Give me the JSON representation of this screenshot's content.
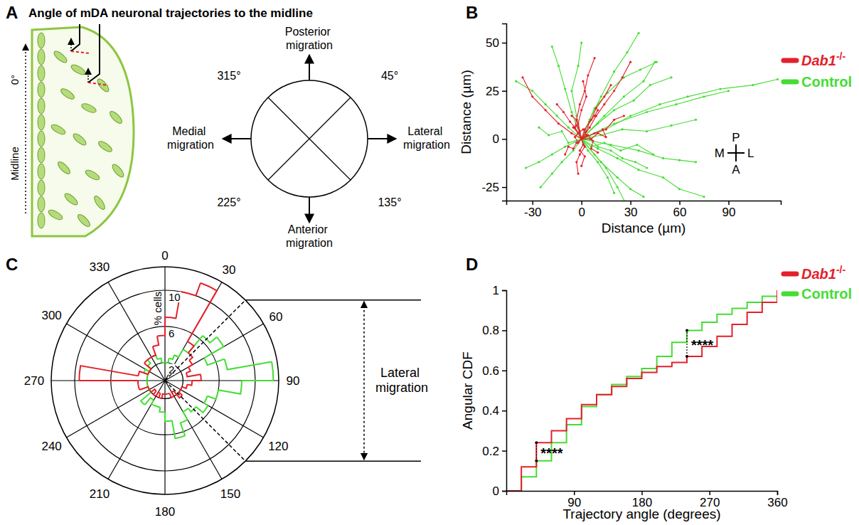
{
  "diagram": {
    "panel": "A",
    "title": "Angle of mDA neuronal trajectories to the midline",
    "schematic": {
      "axis_label": "Midline",
      "angle_label": "0°"
    },
    "compass": {
      "up": "Posterior migration",
      "left": "Medial migration",
      "right": "Lateral migration",
      "down": "Anterior migration",
      "upper_left": "315°",
      "upper_right": "45°",
      "lower_left": "225°",
      "lower_right": "135°"
    }
  },
  "chart_data": [
    {
      "panel": "B",
      "type": "line",
      "x_label": "Distance (µm)",
      "y_label": "Distance (µm)",
      "xlim": [
        -46,
        122
      ],
      "xticks": [
        -30,
        0,
        30,
        60,
        90
      ],
      "ylim": [
        -32,
        60
      ],
      "yticks": [
        -25,
        0,
        25,
        50
      ],
      "legend": "right",
      "annotations": {
        "up": "P",
        "down": "A",
        "left": "M",
        "right": "L"
      },
      "series": [
        {
          "name": "Dab1-/-",
          "color": "#e4202a",
          "marker": "dot",
          "tracks": [
            {
              "x": [
                0,
                -2,
                -4,
                -3,
                -6
              ],
              "y": [
                0,
                3,
                6,
                10,
                12
              ]
            },
            {
              "x": [
                0,
                3,
                5,
                8,
                10
              ],
              "y": [
                0,
                4,
                9,
                12,
                15
              ]
            },
            {
              "x": [
                0,
                -3,
                -5,
                -8,
                -10
              ],
              "y": [
                0,
                -2,
                -5,
                -4,
                -8
              ]
            },
            {
              "x": [
                0,
                2,
                6,
                9,
                14,
                18
              ],
              "y": [
                0,
                5,
                10,
                16,
                22,
                28
              ]
            },
            {
              "x": [
                0,
                1,
                -1,
                2,
                0
              ],
              "y": [
                0,
                -3,
                -6,
                -9,
                -14
              ]
            },
            {
              "x": [
                0,
                5,
                9,
                14,
                20,
                25,
                30
              ],
              "y": [
                0,
                6,
                12,
                18,
                25,
                32,
                40
              ]
            },
            {
              "x": [
                0,
                -6,
                -14,
                -22,
                -30,
                -36
              ],
              "y": [
                0,
                3,
                8,
                15,
                22,
                32
              ]
            },
            {
              "x": [
                0,
                4,
                7,
                6,
                10
              ],
              "y": [
                0,
                2,
                -1,
                -5,
                -7
              ]
            },
            {
              "x": [
                0,
                -2,
                0,
                3,
                1
              ],
              "y": [
                0,
                8,
                15,
                22,
                30
              ]
            },
            {
              "x": [
                0,
                6,
                10,
                15,
                13
              ],
              "y": [
                0,
                0,
                3,
                1,
                5
              ]
            },
            {
              "x": [
                0,
                -4,
                -7,
                -11,
                -15
              ],
              "y": [
                0,
                6,
                9,
                14,
                18
              ]
            },
            {
              "x": [
                0,
                2,
                -1,
                -3,
                -2
              ],
              "y": [
                0,
                -4,
                -8,
                -12,
                -18
              ]
            },
            {
              "x": [
                0,
                8,
                15,
                20,
                26
              ],
              "y": [
                0,
                3,
                5,
                10,
                12
              ]
            },
            {
              "x": [
                0,
                -3,
                -1,
                2,
                4,
                8
              ],
              "y": [
                0,
                10,
                18,
                25,
                33,
                42
              ]
            },
            {
              "x": [
                0,
                3,
                1,
                -2,
                -5
              ],
              "y": [
                0,
                2,
                5,
                3,
                6
              ]
            },
            {
              "x": [
                0,
                -2,
                -4,
                -1,
                -3
              ],
              "y": [
                0,
                -2,
                1,
                4,
                7
              ]
            }
          ]
        },
        {
          "name": "Control",
          "color": "#44dd33",
          "marker": "dot",
          "tracks": [
            {
              "x": [
                0,
                15,
                30,
                48,
                65,
                85,
                105,
                120
              ],
              "y": [
                0,
                5,
                12,
                18,
                22,
                26,
                28,
                31
              ]
            },
            {
              "x": [
                0,
                10,
                22,
                35,
                50,
                60,
                75
              ],
              "y": [
                0,
                -5,
                -10,
                -16,
                -20,
                -26,
                -30
              ]
            },
            {
              "x": [
                0,
                5,
                12,
                20,
                28,
                35
              ],
              "y": [
                0,
                10,
                22,
                35,
                45,
                55
              ]
            },
            {
              "x": [
                0,
                -8,
                -15,
                -22,
                -30,
                -40
              ],
              "y": [
                0,
                6,
                12,
                18,
                25,
                30
              ]
            },
            {
              "x": [
                0,
                12,
                25,
                40,
                55,
                70
              ],
              "y": [
                0,
                2,
                5,
                4,
                7,
                10
              ]
            },
            {
              "x": [
                0,
                8,
                15,
                22,
                28
              ],
              "y": [
                0,
                -8,
                -15,
                -25,
                -35
              ]
            },
            {
              "x": [
                0,
                -5,
                -12,
                -18,
                -25
              ],
              "y": [
                0,
                -6,
                -12,
                -18,
                -25
              ]
            },
            {
              "x": [
                0,
                10,
                20,
                32,
                42,
                55
              ],
              "y": [
                0,
                8,
                15,
                20,
                28,
                32
              ]
            },
            {
              "x": [
                0,
                18,
                35,
                50,
                60,
                70
              ],
              "y": [
                0,
                -3,
                -6,
                -10,
                -11,
                -12
              ]
            },
            {
              "x": [
                0,
                -3,
                -6,
                -2,
                0
              ],
              "y": [
                0,
                12,
                25,
                38,
                50
              ]
            },
            {
              "x": [
                0,
                14,
                26,
                38,
                45
              ],
              "y": [
                0,
                12,
                22,
                30,
                40
              ]
            },
            {
              "x": [
                0,
                6,
                14,
                24,
                34,
                44
              ],
              "y": [
                0,
                -4,
                -2,
                -6,
                -3,
                -8
              ]
            },
            {
              "x": [
                0,
                -10,
                -18,
                -26,
                -34
              ],
              "y": [
                0,
                -4,
                -8,
                -12,
                -15
              ]
            },
            {
              "x": [
                0,
                4,
                10,
                16,
                20
              ],
              "y": [
                0,
                -6,
                -12,
                -20,
                -28
              ]
            },
            {
              "x": [
                0,
                20,
                40,
                58,
                75,
                90
              ],
              "y": [
                0,
                8,
                14,
                18,
                22,
                25
              ]
            },
            {
              "x": [
                0,
                -6,
                -10,
                -14,
                -18
              ],
              "y": [
                0,
                14,
                26,
                38,
                48
              ]
            },
            {
              "x": [
                0,
                8,
                16,
                26,
                36,
                46
              ],
              "y": [
                0,
                16,
                24,
                32,
                36,
                40
              ]
            },
            {
              "x": [
                0,
                -8,
                -12,
                -20,
                -26
              ],
              "y": [
                0,
                -2,
                4,
                2,
                6
              ]
            },
            {
              "x": [
                0,
                12,
                22,
                30,
                38
              ],
              "y": [
                0,
                -12,
                -20,
                -26,
                -30
              ]
            },
            {
              "x": [
                0,
                5,
                10,
                18,
                25,
                33,
                40
              ],
              "y": [
                0,
                0,
                -4,
                -6,
                -10,
                -12,
                -15
              ]
            }
          ]
        }
      ]
    },
    {
      "panel": "C",
      "type": "polar_histogram",
      "y_label": "% cells",
      "bins": [
        0,
        10,
        20,
        30,
        40,
        50,
        60,
        70,
        80,
        90,
        100,
        110,
        120,
        130,
        140,
        150,
        160,
        170,
        180,
        190,
        200,
        210,
        220,
        230,
        240,
        250,
        260,
        270,
        280,
        290,
        300,
        310,
        320,
        330,
        340,
        350,
        360
      ],
      "xticks": [
        0,
        30,
        60,
        90,
        120,
        150,
        180,
        210,
        240,
        270,
        300,
        330
      ],
      "ylim": [
        0,
        12.6
      ],
      "yticks": [
        2,
        6,
        10
      ],
      "annotations": [
        {
          "text": "Lateral migration",
          "from": 45,
          "to": 135
        }
      ],
      "series": [
        {
          "color": "#e4202a",
          "values": [
            7,
            10,
            11.5,
            5,
            4,
            3.5,
            3,
            2.5,
            4,
            3,
            2.5,
            2,
            2,
            2.5,
            1.5,
            2,
            1.5,
            1.5,
            1.5,
            2,
            1.5,
            2,
            1.5,
            2,
            2,
            3,
            3,
            9.5,
            3,
            2,
            2,
            3,
            3,
            3,
            4,
            5
          ]
        },
        {
          "color": "#44dd33",
          "values": [
            2,
            2.5,
            3,
            4,
            6.5,
            7.5,
            5,
            7,
            12,
            8.5,
            6,
            5,
            5.5,
            4.5,
            4,
            5,
            6.5,
            4.5,
            3.5,
            3,
            3,
            2.5,
            3.5,
            2,
            2,
            2,
            2,
            2,
            2,
            2.5,
            2,
            2.5,
            3,
            3,
            2.5,
            2
          ]
        }
      ]
    },
    {
      "panel": "D",
      "type": "line",
      "line_style": "step",
      "x_label": "Trajectory angle (degrees)",
      "y_label": "Angular CDF",
      "xlim": [
        0,
        360
      ],
      "xticks": [
        90,
        180,
        270,
        360
      ],
      "ylim": [
        0,
        1
      ],
      "yticks": [
        0,
        0.2,
        0.4,
        0.6,
        0.8,
        1
      ],
      "legend": "right",
      "x": [
        0,
        20,
        40,
        60,
        80,
        100,
        120,
        140,
        160,
        180,
        200,
        220,
        240,
        260,
        280,
        300,
        320,
        340,
        360
      ],
      "annotations": [
        {
          "text": "****",
          "x": 40
        },
        {
          "text": "****",
          "x": 240
        }
      ],
      "series": [
        {
          "name": "Dab1-/-",
          "color": "#e4202a",
          "values": [
            0,
            0.12,
            0.24,
            0.3,
            0.36,
            0.43,
            0.48,
            0.52,
            0.56,
            0.59,
            0.62,
            0.64,
            0.67,
            0.72,
            0.77,
            0.83,
            0.89,
            0.94,
            1
          ]
        },
        {
          "name": "Control",
          "color": "#44dd33",
          "values": [
            0,
            0.07,
            0.15,
            0.24,
            0.33,
            0.42,
            0.48,
            0.53,
            0.57,
            0.61,
            0.67,
            0.74,
            0.8,
            0.84,
            0.88,
            0.91,
            0.94,
            0.97,
            1
          ]
        }
      ]
    }
  ]
}
